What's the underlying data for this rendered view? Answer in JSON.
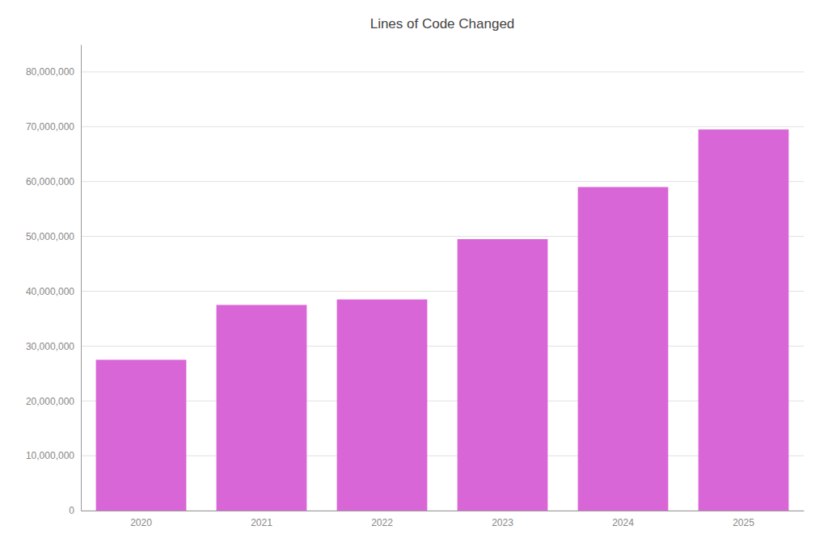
{
  "chart_data": {
    "type": "bar",
    "title": "Lines of Code Changed",
    "categories": [
      "2020",
      "2021",
      "2022",
      "2023",
      "2024",
      "2025"
    ],
    "values": [
      27500000,
      37500000,
      38500000,
      49500000,
      59000000,
      69500000
    ],
    "color": "#d966d6",
    "ylim": [
      0,
      85000000
    ],
    "yticks": [
      0,
      {
        "value": 10000000,
        "label": "10,000,000"
      },
      {
        "value": 20000000,
        "label": "20,000,000"
      },
      {
        "value": 30000000,
        "label": "30,000,000"
      },
      {
        "value": 40000000,
        "label": "40,000,000"
      },
      {
        "value": 50000000,
        "label": "50,000,000"
      },
      {
        "value": 60000000,
        "label": "60,000,000"
      },
      {
        "value": 70000000,
        "label": "70,000,000"
      },
      {
        "value": 80000000,
        "label": "80,000,000"
      }
    ],
    "grid": true
  }
}
